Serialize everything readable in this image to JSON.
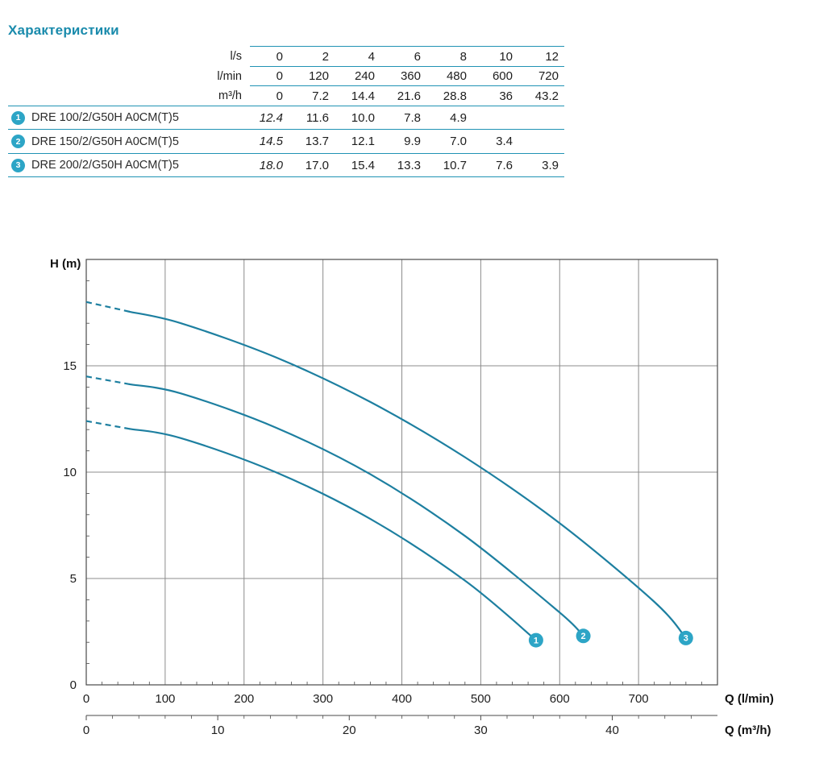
{
  "title": "Характеристики",
  "colors": {
    "accent": "#1a8bac",
    "table_line": "#2093b4",
    "badge": "#2da5c6",
    "curve": "#1d7fa0",
    "grid": "#8c8c8c",
    "axis": "#4a4a4a",
    "text": "#1d1d1d"
  },
  "table": {
    "header_rows": [
      {
        "unit": "l/s",
        "values": [
          "0",
          "2",
          "4",
          "6",
          "8",
          "10",
          "12"
        ]
      },
      {
        "unit": "l/min",
        "values": [
          "0",
          "120",
          "240",
          "360",
          "480",
          "600",
          "720"
        ]
      },
      {
        "unit": "m³/h",
        "values": [
          "0",
          "7.2",
          "14.4",
          "21.6",
          "28.8",
          "36",
          "43.2"
        ]
      }
    ],
    "rows": [
      {
        "badge": "1",
        "model": "DRE 100/2/G50H A0CM(T)5",
        "values": [
          "12.4",
          "11.6",
          "10.0",
          "7.8",
          "4.9",
          "",
          ""
        ]
      },
      {
        "badge": "2",
        "model": "DRE 150/2/G50H A0CM(T)5",
        "values": [
          "14.5",
          "13.7",
          "12.1",
          "9.9",
          "7.0",
          "3.4",
          ""
        ]
      },
      {
        "badge": "3",
        "model": "DRE 200/2/G50H A0CM(T)5",
        "values": [
          "18.0",
          "17.0",
          "15.4",
          "13.3",
          "10.7",
          "7.6",
          "3.9"
        ]
      }
    ]
  },
  "chart_data": {
    "type": "line",
    "title": "",
    "ylabel": "H (m)",
    "xlabel_primary": "Q (l/min)",
    "xlabel_secondary": "Q (m³/h)",
    "xlim": [
      0,
      800
    ],
    "ylim": [
      0,
      20
    ],
    "x_ticks_lmin": [
      0,
      100,
      200,
      300,
      400,
      500,
      600,
      700
    ],
    "x_ticks_m3h": [
      0,
      10,
      20,
      30,
      40
    ],
    "y_ticks": [
      0,
      5,
      10,
      15
    ],
    "grid": true,
    "dashed_until_lmin": 55,
    "lmin_per_m3h": 16.6667,
    "series": [
      {
        "name": "1",
        "x": [
          0,
          120,
          240,
          360,
          480,
          570
        ],
        "y": [
          12.4,
          11.6,
          10.0,
          7.8,
          4.9,
          2.1
        ]
      },
      {
        "name": "2",
        "x": [
          0,
          120,
          240,
          360,
          480,
          600,
          630
        ],
        "y": [
          14.5,
          13.7,
          12.1,
          9.9,
          7.0,
          3.4,
          2.3
        ]
      },
      {
        "name": "3",
        "x": [
          0,
          120,
          240,
          360,
          480,
          600,
          720,
          760
        ],
        "y": [
          18.0,
          17.0,
          15.4,
          13.3,
          10.7,
          7.6,
          3.9,
          2.2
        ]
      }
    ]
  }
}
